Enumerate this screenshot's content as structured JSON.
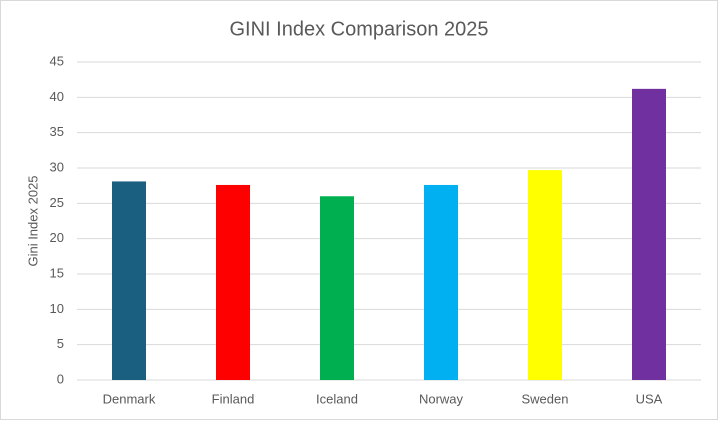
{
  "chart_data": {
    "type": "bar",
    "title": "GINI Index Comparison 2025",
    "y_label": "Gini Index 2025",
    "categories": [
      "Denmark",
      "Finland",
      "Iceland",
      "Norway",
      "Sweden",
      "USA"
    ],
    "values": [
      28.1,
      27.6,
      26.0,
      27.6,
      29.7,
      41.2
    ],
    "colors": [
      "#1a5e80",
      "#ff0000",
      "#00b050",
      "#00b0f0",
      "#ffff00",
      "#7030a0"
    ],
    "ylim": [
      0,
      45
    ],
    "yticks": [
      0,
      5,
      10,
      15,
      20,
      25,
      30,
      35,
      40,
      45
    ],
    "grid": true
  }
}
